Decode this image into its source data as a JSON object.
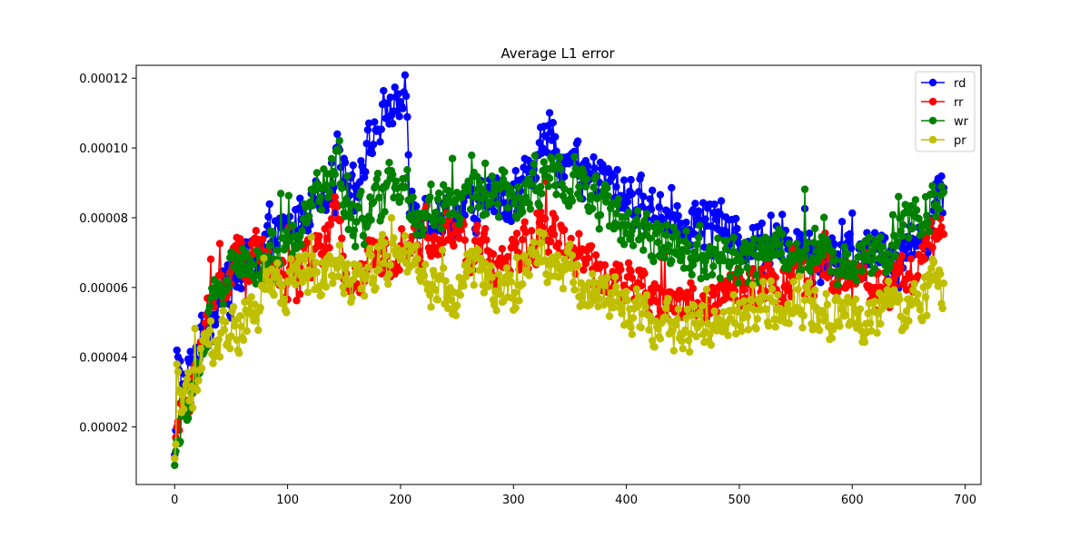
{
  "chart_data": {
    "type": "line",
    "title": "Average L1 error",
    "xlabel": "",
    "ylabel": "",
    "xlim": [
      -34,
      714
    ],
    "ylim": [
      3.5e-06,
      0.0001237
    ],
    "xticks": [
      0,
      100,
      200,
      300,
      400,
      500,
      600,
      700
    ],
    "xtick_labels": [
      "0",
      "100",
      "200",
      "300",
      "400",
      "500",
      "600",
      "700"
    ],
    "yticks": [
      2e-05,
      4e-05,
      6e-05,
      8e-05,
      0.0001,
      0.00012
    ],
    "ytick_labels": [
      "0.00002",
      "0.00004",
      "0.00006",
      "0.00008",
      "0.00010",
      "0.00012"
    ],
    "grid": false,
    "legend_position": "top-right",
    "x_range": [
      0,
      681
    ],
    "series": [
      {
        "name": "rd",
        "color": "#0000ff",
        "keypoints": [
          [
            0,
            1.2e-05
          ],
          [
            1,
            1.9e-05
          ],
          [
            2,
            4.2e-05
          ],
          [
            5,
            3.8e-05
          ],
          [
            8,
            2.8e-05
          ],
          [
            12,
            3.5e-05
          ],
          [
            18,
            4e-05
          ],
          [
            25,
            4.7e-05
          ],
          [
            32,
            5.2e-05
          ],
          [
            40,
            5.8e-05
          ],
          [
            50,
            6e-05
          ],
          [
            60,
            6.4e-05
          ],
          [
            70,
            7e-05
          ],
          [
            80,
            7.2e-05
          ],
          [
            90,
            7.4e-05
          ],
          [
            100,
            7.5e-05
          ],
          [
            110,
            8e-05
          ],
          [
            120,
            8.5e-05
          ],
          [
            130,
            8.8e-05
          ],
          [
            140,
            9.2e-05
          ],
          [
            145,
            0.0001
          ],
          [
            150,
            9.3e-05
          ],
          [
            160,
            9.2e-05
          ],
          [
            170,
            9.8e-05
          ],
          [
            180,
            0.000106
          ],
          [
            190,
            0.000112
          ],
          [
            200,
            0.000113
          ],
          [
            205,
            0.000114
          ],
          [
            208,
            8.4e-05
          ],
          [
            220,
            8.3e-05
          ],
          [
            240,
            8.1e-05
          ],
          [
            260,
            8.2e-05
          ],
          [
            280,
            8.5e-05
          ],
          [
            300,
            8.6e-05
          ],
          [
            310,
            9e-05
          ],
          [
            320,
            9.7e-05
          ],
          [
            330,
            0.000103
          ],
          [
            340,
            0.0001
          ],
          [
            350,
            9.5e-05
          ],
          [
            360,
            9.3e-05
          ],
          [
            370,
            9.2e-05
          ],
          [
            380,
            9.1e-05
          ],
          [
            390,
            8.8e-05
          ],
          [
            400,
            8.7e-05
          ],
          [
            420,
            8.2e-05
          ],
          [
            440,
            8.2e-05
          ],
          [
            460,
            7.9e-05
          ],
          [
            480,
            7.8e-05
          ],
          [
            500,
            7.4e-05
          ],
          [
            520,
            7.3e-05
          ],
          [
            540,
            7.3e-05
          ],
          [
            560,
            7.1e-05
          ],
          [
            580,
            6.9e-05
          ],
          [
            600,
            6.8e-05
          ],
          [
            620,
            6.9e-05
          ],
          [
            640,
            7e-05
          ],
          [
            660,
            7.3e-05
          ],
          [
            670,
            8e-05
          ],
          [
            681,
            9e-05
          ]
        ]
      },
      {
        "name": "rr",
        "color": "#ff0000",
        "keypoints": [
          [
            0,
            1.1e-05
          ],
          [
            1,
            1.7e-05
          ],
          [
            2,
            2e-05
          ],
          [
            5,
            2.2e-05
          ],
          [
            10,
            2.5e-05
          ],
          [
            15,
            3.2e-05
          ],
          [
            20,
            3.8e-05
          ],
          [
            25,
            4.5e-05
          ],
          [
            30,
            5.2e-05
          ],
          [
            40,
            6e-05
          ],
          [
            50,
            6.5e-05
          ],
          [
            60,
            6.8e-05
          ],
          [
            70,
            6.9e-05
          ],
          [
            80,
            6.6e-05
          ],
          [
            90,
            6.4e-05
          ],
          [
            100,
            6.2e-05
          ],
          [
            110,
            6.3e-05
          ],
          [
            120,
            6.7e-05
          ],
          [
            130,
            7e-05
          ],
          [
            140,
            7.6e-05
          ],
          [
            146,
            8e-05
          ],
          [
            150,
            6.4e-05
          ],
          [
            160,
            6.3e-05
          ],
          [
            170,
            6.5e-05
          ],
          [
            180,
            6.8e-05
          ],
          [
            190,
            7.2e-05
          ],
          [
            200,
            7.4e-05
          ],
          [
            210,
            7.2e-05
          ],
          [
            220,
            7.5e-05
          ],
          [
            240,
            7.4e-05
          ],
          [
            260,
            7.1e-05
          ],
          [
            280,
            6.8e-05
          ],
          [
            300,
            6.7e-05
          ],
          [
            310,
            7e-05
          ],
          [
            320,
            7.4e-05
          ],
          [
            330,
            7.8e-05
          ],
          [
            340,
            7.5e-05
          ],
          [
            350,
            7.2e-05
          ],
          [
            360,
            6.8e-05
          ],
          [
            370,
            6.4e-05
          ],
          [
            380,
            6.2e-05
          ],
          [
            400,
            6.1e-05
          ],
          [
            420,
            5.8e-05
          ],
          [
            440,
            5.6e-05
          ],
          [
            460,
            5.6e-05
          ],
          [
            480,
            5.7e-05
          ],
          [
            500,
            5.8e-05
          ],
          [
            520,
            6e-05
          ],
          [
            540,
            6.2e-05
          ],
          [
            560,
            6.4e-05
          ],
          [
            580,
            6.3e-05
          ],
          [
            600,
            6.2e-05
          ],
          [
            620,
            6e-05
          ],
          [
            640,
            6.2e-05
          ],
          [
            660,
            6.6e-05
          ],
          [
            670,
            7.2e-05
          ],
          [
            681,
            7.8e-05
          ]
        ]
      },
      {
        "name": "wr",
        "color": "#008000",
        "keypoints": [
          [
            0,
            9e-06
          ],
          [
            1,
            1.3e-05
          ],
          [
            2,
            1.6e-05
          ],
          [
            5,
            2e-05
          ],
          [
            10,
            2.4e-05
          ],
          [
            15,
            3.1e-05
          ],
          [
            20,
            3.7e-05
          ],
          [
            25,
            4.4e-05
          ],
          [
            30,
            5e-05
          ],
          [
            40,
            6e-05
          ],
          [
            50,
            6.5e-05
          ],
          [
            60,
            6.8e-05
          ],
          [
            70,
            6.8e-05
          ],
          [
            80,
            6.7e-05
          ],
          [
            90,
            7e-05
          ],
          [
            100,
            7.4e-05
          ],
          [
            110,
            7.9e-05
          ],
          [
            120,
            8.3e-05
          ],
          [
            130,
            8.8e-05
          ],
          [
            140,
            9.1e-05
          ],
          [
            146,
            9.7e-05
          ],
          [
            150,
            8e-05
          ],
          [
            160,
            7.8e-05
          ],
          [
            170,
            8e-05
          ],
          [
            180,
            8.3e-05
          ],
          [
            190,
            8.8e-05
          ],
          [
            200,
            8.7e-05
          ],
          [
            210,
            8.4e-05
          ],
          [
            220,
            8.2e-05
          ],
          [
            240,
            8.3e-05
          ],
          [
            260,
            8.5e-05
          ],
          [
            280,
            8.8e-05
          ],
          [
            300,
            8.5e-05
          ],
          [
            310,
            8.6e-05
          ],
          [
            320,
            8.9e-05
          ],
          [
            330,
            9.3e-05
          ],
          [
            340,
            9.5e-05
          ],
          [
            350,
            9.3e-05
          ],
          [
            360,
            8.9e-05
          ],
          [
            370,
            8.6e-05
          ],
          [
            380,
            8.2e-05
          ],
          [
            400,
            7.8e-05
          ],
          [
            420,
            7.5e-05
          ],
          [
            440,
            7.4e-05
          ],
          [
            460,
            7e-05
          ],
          [
            480,
            6.8e-05
          ],
          [
            500,
            6.8e-05
          ],
          [
            520,
            7e-05
          ],
          [
            540,
            7.1e-05
          ],
          [
            560,
            7e-05
          ],
          [
            580,
            6.9e-05
          ],
          [
            600,
            6.8e-05
          ],
          [
            620,
            7e-05
          ],
          [
            640,
            7.3e-05
          ],
          [
            660,
            8e-05
          ],
          [
            670,
            8.5e-05
          ],
          [
            681,
            9.2e-05
          ]
        ]
      },
      {
        "name": "pr",
        "color": "#bfbf00",
        "keypoints": [
          [
            0,
            1.1e-05
          ],
          [
            1,
            1.5e-05
          ],
          [
            2,
            3.8e-05
          ],
          [
            5,
            3e-05
          ],
          [
            8,
            2.2e-05
          ],
          [
            12,
            2.6e-05
          ],
          [
            18,
            3.2e-05
          ],
          [
            25,
            4e-05
          ],
          [
            30,
            4.2e-05
          ],
          [
            40,
            4.6e-05
          ],
          [
            50,
            4.8e-05
          ],
          [
            60,
            5e-05
          ],
          [
            70,
            5.3e-05
          ],
          [
            80,
            5.6e-05
          ],
          [
            90,
            5.9e-05
          ],
          [
            100,
            6.1e-05
          ],
          [
            110,
            6.3e-05
          ],
          [
            120,
            6.5e-05
          ],
          [
            130,
            6.6e-05
          ],
          [
            140,
            6.7e-05
          ],
          [
            146,
            7e-05
          ],
          [
            150,
            6.2e-05
          ],
          [
            160,
            6.2e-05
          ],
          [
            170,
            6.4e-05
          ],
          [
            180,
            6.6e-05
          ],
          [
            190,
            6.8e-05
          ],
          [
            200,
            6.9e-05
          ],
          [
            210,
            6.8e-05
          ],
          [
            215,
            6.3e-05
          ],
          [
            230,
            6.1e-05
          ],
          [
            250,
            5.8e-05
          ],
          [
            260,
            6.6e-05
          ],
          [
            270,
            6.8e-05
          ],
          [
            280,
            6e-05
          ],
          [
            290,
            5.8e-05
          ],
          [
            300,
            5.7e-05
          ],
          [
            310,
            6.7e-05
          ],
          [
            320,
            7.4e-05
          ],
          [
            330,
            7e-05
          ],
          [
            340,
            6.8e-05
          ],
          [
            350,
            6.4e-05
          ],
          [
            360,
            6e-05
          ],
          [
            380,
            5.8e-05
          ],
          [
            400,
            5.6e-05
          ],
          [
            420,
            5e-05
          ],
          [
            440,
            4.8e-05
          ],
          [
            460,
            4.7e-05
          ],
          [
            480,
            5.1e-05
          ],
          [
            500,
            5.3e-05
          ],
          [
            520,
            5.5e-05
          ],
          [
            540,
            5.6e-05
          ],
          [
            560,
            5.5e-05
          ],
          [
            580,
            5.3e-05
          ],
          [
            600,
            5.2e-05
          ],
          [
            620,
            5.3e-05
          ],
          [
            640,
            5.3e-05
          ],
          [
            660,
            5.4e-05
          ],
          [
            670,
            6.2e-05
          ],
          [
            681,
            5.7e-05
          ]
        ]
      }
    ]
  }
}
